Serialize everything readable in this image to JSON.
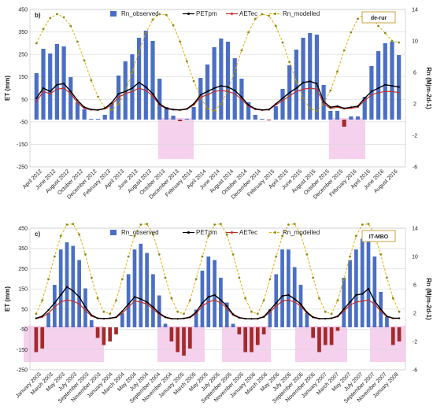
{
  "colors": {
    "rn_observed_pos": "#4a6fc4",
    "rn_observed_neg": "#a52a2a",
    "petpm": "#000000",
    "aetec": "#c0302a",
    "rn_modelled": "#e0b000",
    "highlight": "#f3c6ea",
    "site_box": "#c8a040"
  },
  "chart_data": [
    {
      "type": "bar",
      "panel_label": "b)",
      "site_label": "de-rur",
      "legend": {
        "rn_observed": "Rn_observed",
        "petpm": "PETpm",
        "aetec": "AETec",
        "rn_modelled": "Rn_modelled"
      },
      "ylabel_left": "ET (mm)",
      "ylabel_right": "Rn (Mjm-2d-1)",
      "ylim_left": [
        -250,
        450
      ],
      "ylim_right": [
        -6,
        14
      ],
      "yticks_left": [
        "-250",
        "-150",
        "-50",
        "50",
        "150",
        "250",
        "350",
        "450"
      ],
      "yticks_right": [
        "-6",
        "-2",
        "2",
        "6",
        "10",
        "14"
      ],
      "xtick_labels": [
        "April 2012",
        "June 2012",
        "August 2012",
        "October 2012",
        "December 2012",
        "February 2013",
        "April 2013",
        "June 2013",
        "August 2013",
        "October 2013",
        "December 2013",
        "February 2014",
        "April 2014",
        "June 2014",
        "August 2014",
        "October 2014",
        "December 2014",
        "February 2015",
        "April 2015",
        "June 2015",
        "August 2015",
        "October 2015",
        "December 2015",
        "February 2016",
        "April 2016",
        "June 2016",
        "August 2016"
      ],
      "series": [
        {
          "name": "Rn_observed",
          "axis": "right",
          "values": [
            5.9,
            9.0,
            8.4,
            9.6,
            9.3,
            5.4,
            2.2,
            1.3,
            0.1,
            0.1,
            0.6,
            2.1,
            5.6,
            7.4,
            8.3,
            10.4,
            11.3,
            10.0,
            5.2,
            1.6,
            0.5,
            -0.2,
            0.1,
            1.6,
            5.3,
            7.0,
            9.2,
            10.3,
            9.9,
            7.8,
            5.2,
            2.2,
            0.6,
            0.1,
            -0.1,
            1.7,
            3.9,
            6.9,
            8.9,
            10.4,
            11.0,
            10.8,
            4.4,
            1.1,
            1.1,
            -0.9,
            0.4,
            0.4,
            2.9,
            6.8,
            8.7,
            9.7,
            9.9,
            8.2
          ]
        },
        {
          "name": "PETpm",
          "axis": "left",
          "values": [
            55,
            100,
            85,
            115,
            120,
            85,
            45,
            15,
            5,
            3,
            10,
            35,
            75,
            85,
            100,
            125,
            105,
            75,
            30,
            10,
            5,
            3,
            8,
            30,
            70,
            85,
            100,
            110,
            105,
            90,
            60,
            25,
            8,
            3,
            5,
            30,
            55,
            80,
            100,
            125,
            130,
            120,
            40,
            15,
            20,
            10,
            15,
            20,
            55,
            85,
            100,
            115,
            110,
            105
          ]
        },
        {
          "name": "AETec",
          "axis": "left",
          "values": [
            40,
            85,
            75,
            95,
            100,
            75,
            35,
            10,
            3,
            2,
            8,
            25,
            60,
            75,
            85,
            100,
            90,
            65,
            25,
            8,
            3,
            2,
            6,
            25,
            60,
            70,
            85,
            90,
            85,
            75,
            50,
            20,
            5,
            2,
            3,
            25,
            45,
            65,
            85,
            95,
            100,
            95,
            30,
            10,
            15,
            8,
            10,
            15,
            45,
            70,
            80,
            85,
            85,
            80
          ]
        },
        {
          "name": "Rn_modelled",
          "axis": "right",
          "values": [
            9.7,
            11.5,
            12.9,
            13.4,
            13.0,
            11.9,
            9.9,
            7.5,
            5.0,
            2.9,
            1.5,
            1.2,
            2.0,
            3.6,
            6.0,
            8.6,
            11.0,
            12.7,
            13.4,
            13.3,
            12.0,
            9.9,
            7.4,
            4.9,
            2.8,
            1.4,
            1.1,
            2.0,
            3.7,
            6.1,
            8.8,
            11.1,
            12.8,
            13.4,
            13.2,
            11.9,
            9.8,
            7.3,
            4.8,
            2.7,
            1.4,
            1.1,
            2.0,
            3.7,
            6.1,
            8.8,
            11.1,
            12.8,
            13.4,
            13.2,
            11.9,
            11.0,
            10.0,
            9.8
          ]
        }
      ]
    },
    {
      "type": "bar",
      "panel_label": "c)",
      "site_label": "IT-MBO",
      "legend": {
        "rn_observed": "Rn_observed",
        "petpm": "PETpm",
        "aetec": "AETec",
        "rn_modelled": "Rn_modelled"
      },
      "ylabel_left": "ET (mm)",
      "ylabel_right": "Rn (Mjm-2d-1)",
      "ylim_left": [
        -250,
        450
      ],
      "ylim_right": [
        -6,
        14
      ],
      "yticks_left": [
        "-250",
        "-150",
        "-50",
        "50",
        "150",
        "250",
        "350",
        "450"
      ],
      "yticks_right": [
        "-6",
        "-2",
        "2",
        "6",
        "10",
        "14"
      ],
      "xtick_labels": [
        "January 2003",
        "March 2003",
        "May 2003",
        "July 2003",
        "September 2003",
        "November 2003",
        "January 2004",
        "March 2004",
        "May 2004",
        "July 2004",
        "September 2004",
        "November 2004",
        "January 2005",
        "March 2005",
        "May 2005",
        "July 2005",
        "September 2005",
        "November 2005",
        "January 2006",
        "March 2006",
        "May 2006",
        "July 2006",
        "September 2006",
        "November 2006",
        "January 2007",
        "March 2007",
        "May 2007",
        "July 2007",
        "September 2007",
        "November 2007",
        "January 2008"
      ],
      "series": [
        {
          "name": "Rn_observed",
          "axis": "right",
          "values": [
            -3.5,
            -3.0,
            2.0,
            6.0,
            11.0,
            12.0,
            11.5,
            9.5,
            5.5,
            1.0,
            -1.5,
            -2.5,
            -2.0,
            -1.0,
            2.0,
            7.5,
            11.0,
            11.8,
            10.5,
            7.5,
            4.5,
            0.5,
            -2.0,
            -3.5,
            -4.0,
            -3.0,
            2.5,
            8.0,
            10.0,
            9.5,
            7.0,
            3.5,
            0.5,
            -1.0,
            -3.5,
            -3.5,
            -2.5,
            -1.0,
            2.5,
            7.5,
            11.0,
            11.0,
            8.5,
            6.0,
            2.0,
            -1.5,
            -3.5,
            -2.5,
            -2.5,
            -0.5,
            7.0,
            9.5,
            11.0,
            12.5,
            13.5,
            10.0,
            5.0,
            1.5,
            -2.5,
            -2.0
          ]
        },
        {
          "name": "PETpm",
          "axis": "left",
          "values": [
            5,
            15,
            45,
            80,
            120,
            160,
            140,
            110,
            60,
            20,
            5,
            3,
            5,
            10,
            40,
            75,
            110,
            100,
            85,
            60,
            30,
            10,
            3,
            2,
            4,
            10,
            35,
            80,
            110,
            120,
            95,
            65,
            25,
            8,
            3,
            2,
            3,
            12,
            45,
            80,
            115,
            120,
            100,
            75,
            35,
            10,
            3,
            3,
            5,
            15,
            50,
            85,
            120,
            125,
            150,
            90,
            50,
            15,
            5,
            5
          ]
        },
        {
          "name": "AETec",
          "axis": "left",
          "values": [
            3,
            10,
            30,
            60,
            85,
            95,
            90,
            75,
            45,
            15,
            4,
            2,
            4,
            8,
            30,
            60,
            90,
            85,
            75,
            50,
            25,
            8,
            2,
            2,
            3,
            8,
            28,
            65,
            85,
            95,
            80,
            55,
            20,
            6,
            2,
            2,
            2,
            10,
            35,
            65,
            90,
            95,
            85,
            65,
            30,
            8,
            2,
            2,
            4,
            12,
            40,
            70,
            85,
            90,
            95,
            75,
            40,
            12,
            4,
            4
          ]
        },
        {
          "name": "Rn_modelled",
          "axis": "right",
          "values": [
            1.9,
            3.8,
            6.8,
            10.0,
            12.9,
            14.5,
            14.6,
            13.1,
            10.3,
            7.0,
            4.1,
            2.2,
            1.9,
            3.8,
            6.8,
            10.0,
            12.9,
            14.5,
            14.6,
            13.1,
            10.3,
            7.0,
            4.1,
            2.2,
            1.9,
            3.8,
            6.8,
            10.0,
            12.9,
            14.5,
            14.6,
            13.1,
            10.3,
            7.0,
            4.1,
            2.2,
            1.9,
            3.8,
            6.8,
            10.0,
            12.9,
            14.5,
            14.6,
            13.1,
            10.3,
            7.0,
            4.1,
            2.2,
            1.9,
            3.8,
            6.8,
            10.0,
            12.9,
            14.5,
            14.6,
            13.1,
            10.3,
            7.0,
            4.1,
            2.2
          ]
        }
      ]
    }
  ]
}
